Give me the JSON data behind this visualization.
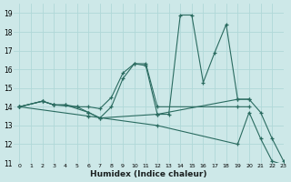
{
  "xlabel": "Humidex (Indice chaleur)",
  "bg_color": "#cde8e8",
  "grid_color": "#b0d8d8",
  "line_color": "#2a6b60",
  "xlim": [
    -0.5,
    23
  ],
  "ylim": [
    11,
    19.5
  ],
  "xticks": [
    0,
    1,
    2,
    3,
    4,
    5,
    6,
    7,
    8,
    9,
    10,
    11,
    12,
    13,
    14,
    15,
    16,
    17,
    18,
    19,
    20,
    21,
    22,
    23
  ],
  "yticks": [
    11,
    12,
    13,
    14,
    15,
    16,
    17,
    18,
    19
  ],
  "series": [
    {
      "x": [
        0,
        2,
        3,
        4,
        6,
        7,
        8,
        9,
        10,
        11,
        12,
        13,
        14,
        15,
        16,
        17,
        18,
        19,
        20,
        21,
        22,
        23
      ],
      "y": [
        14.0,
        14.3,
        14.1,
        14.1,
        13.7,
        13.4,
        14.0,
        15.5,
        16.3,
        16.2,
        13.6,
        13.6,
        18.9,
        18.9,
        15.3,
        16.9,
        18.4,
        14.4,
        14.4,
        13.7,
        12.3,
        11.1
      ]
    },
    {
      "x": [
        0,
        2,
        3,
        5,
        6,
        7,
        8,
        9,
        10,
        11,
        12,
        19,
        20
      ],
      "y": [
        14.0,
        14.3,
        14.1,
        14.0,
        14.0,
        13.9,
        14.5,
        15.8,
        16.3,
        16.3,
        14.0,
        14.0,
        14.0
      ]
    },
    {
      "x": [
        0,
        2,
        3,
        4,
        5,
        6,
        7,
        12,
        19,
        20
      ],
      "y": [
        14.0,
        14.3,
        14.1,
        14.1,
        14.0,
        13.7,
        13.4,
        13.6,
        14.4,
        14.4
      ]
    },
    {
      "x": [
        0,
        6,
        12,
        19,
        20,
        21,
        22,
        23
      ],
      "y": [
        14.0,
        13.5,
        13.0,
        12.0,
        13.7,
        12.3,
        11.1,
        10.9
      ]
    }
  ]
}
